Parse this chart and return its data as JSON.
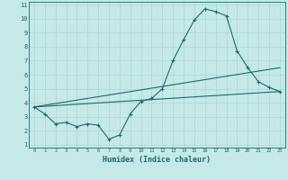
{
  "xlabel": "Humidex (Indice chaleur)",
  "xlim": [
    -0.5,
    23.5
  ],
  "ylim": [
    0.8,
    11.2
  ],
  "xticks": [
    0,
    1,
    2,
    3,
    4,
    5,
    6,
    7,
    8,
    9,
    10,
    11,
    12,
    13,
    14,
    15,
    16,
    17,
    18,
    19,
    20,
    21,
    22,
    23
  ],
  "yticks": [
    1,
    2,
    3,
    4,
    5,
    6,
    7,
    8,
    9,
    10,
    11
  ],
  "bg_color": "#c5e8e8",
  "line_color": "#1a6b6b",
  "grid_color": "#a8d0d0",
  "line1": {
    "x": [
      0,
      1,
      2,
      3,
      4,
      5,
      6,
      7,
      8,
      9,
      10,
      11,
      12,
      13,
      14,
      15,
      16,
      17,
      18,
      19,
      20,
      21,
      22,
      23
    ],
    "y": [
      3.7,
      3.2,
      2.5,
      2.6,
      2.3,
      2.5,
      2.4,
      1.4,
      1.7,
      3.2,
      4.1,
      4.3,
      5.0,
      7.0,
      8.5,
      9.9,
      10.7,
      10.5,
      10.2,
      7.7,
      6.5,
      5.5,
      5.1,
      4.8
    ]
  },
  "line2": {
    "x": [
      0,
      23
    ],
    "y": [
      3.7,
      6.5
    ]
  },
  "line3": {
    "x": [
      0,
      23
    ],
    "y": [
      3.7,
      4.8
    ]
  }
}
